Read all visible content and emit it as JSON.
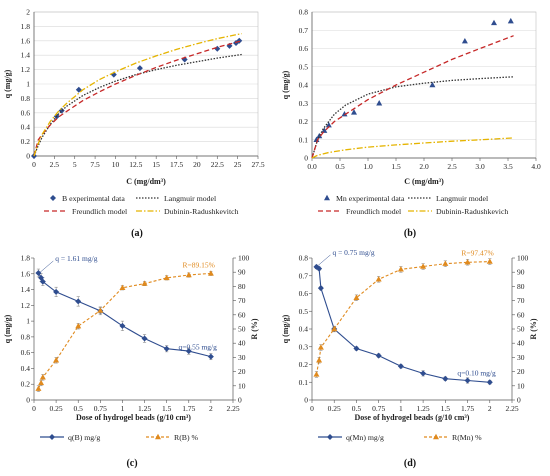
{
  "chart_data": [
    {
      "id": "a",
      "type": "scatter",
      "caption_letter": "(a)",
      "xlabel": "C (mg/dm³)",
      "ylabel": "q (mg/g)",
      "xlim": [
        0,
        27.5
      ],
      "xticks": [
        0,
        2.5,
        5,
        7.5,
        10,
        12.5,
        15,
        17.5,
        20,
        22.5,
        25,
        27.5
      ],
      "ylim": [
        0,
        2
      ],
      "yticks": [
        0,
        0.2,
        0.4,
        0.6,
        0.8,
        1,
        1.2,
        1.4,
        1.6,
        1.8,
        2
      ],
      "xtick_labels": [
        "0",
        "2.5",
        "5",
        "7.5",
        "10",
        "12.5",
        "15",
        "17.5",
        "20",
        "22.5",
        "25",
        "27.5"
      ],
      "ytick_labels": [
        "0",
        "0.2",
        "0.4",
        "0.6",
        "0.8",
        "1",
        "1.2",
        "1.4",
        "1.6",
        "1.8",
        "2"
      ],
      "grid": "horizontal",
      "legend_position": "bottom",
      "series": [
        {
          "name": "B experimental data",
          "kind": "points",
          "marker": "diamond",
          "color": "#2f4d8f",
          "x": [
            0,
            2.8,
            3.4,
            5.5,
            9.8,
            13,
            18.5,
            22.5,
            24,
            24.8,
            25.2
          ],
          "y": [
            0,
            0.55,
            0.63,
            0.92,
            1.13,
            1.22,
            1.34,
            1.49,
            1.53,
            1.57,
            1.6
          ]
        },
        {
          "name": "Langmuir model",
          "kind": "line",
          "dash": "1.5,1.5",
          "color": "#333333",
          "x": [
            0,
            0.5,
            1,
            2,
            3,
            4,
            6,
            8,
            10,
            12.5,
            15,
            17.5,
            20,
            22.5,
            25.5
          ],
          "y": [
            0,
            0.14,
            0.26,
            0.44,
            0.58,
            0.69,
            0.84,
            0.95,
            1.04,
            1.13,
            1.2,
            1.26,
            1.31,
            1.36,
            1.41
          ]
        },
        {
          "name": "Freundlich model",
          "kind": "line",
          "dash": "5,3",
          "color": "#c62828",
          "x": [
            0,
            0.5,
            1,
            2,
            3,
            4,
            6,
            8,
            10,
            12.5,
            15,
            17.5,
            20,
            22.5,
            25.5
          ],
          "y": [
            0,
            0.22,
            0.3,
            0.43,
            0.54,
            0.62,
            0.77,
            0.89,
            1.0,
            1.12,
            1.23,
            1.33,
            1.42,
            1.51,
            1.6
          ]
        },
        {
          "name": "Dubinin-Radushkevitch",
          "kind": "line",
          "dash": "6,2,1.5,2",
          "color": "#e5b400",
          "x": [
            0,
            0.5,
            1,
            2,
            3,
            4,
            6,
            8,
            10,
            12.5,
            15,
            17.5,
            20,
            22.5,
            25.5
          ],
          "y": [
            0,
            0.17,
            0.3,
            0.48,
            0.62,
            0.73,
            0.92,
            1.06,
            1.17,
            1.29,
            1.39,
            1.48,
            1.56,
            1.63,
            1.7
          ]
        }
      ]
    },
    {
      "id": "b",
      "type": "scatter",
      "caption_letter": "(b)",
      "xlabel": "C (mg/dm³)",
      "ylabel": "q (mg/g)",
      "xlim": [
        0,
        4
      ],
      "xticks": [
        0,
        0.5,
        1,
        1.5,
        2,
        2.5,
        3,
        3.5,
        4
      ],
      "ylim": [
        0,
        0.8
      ],
      "yticks": [
        0,
        0.1,
        0.2,
        0.3,
        0.4,
        0.5,
        0.6,
        0.7,
        0.8
      ],
      "xtick_labels": [
        "0.0",
        "0.5",
        "1.0",
        "1.5",
        "2.0",
        "2.5",
        "3.0",
        "3.5",
        "4.0"
      ],
      "ytick_labels": [
        "0",
        "0.1",
        "0.2",
        "0.3",
        "0.4",
        "0.5",
        "0.6",
        "0.7",
        "0.8"
      ],
      "grid": "horizontal",
      "legend_position": "bottom",
      "series": [
        {
          "name": "Mn experimental data",
          "kind": "points",
          "marker": "triangle",
          "color": "#2f4d8f",
          "x": [
            0.08,
            0.13,
            0.22,
            0.3,
            0.58,
            0.75,
            1.2,
            2.15,
            2.73,
            3.25,
            3.55
          ],
          "y": [
            0.1,
            0.12,
            0.15,
            0.18,
            0.24,
            0.25,
            0.3,
            0.4,
            0.64,
            0.74,
            0.75
          ]
        },
        {
          "name": "Langmuir model",
          "kind": "line",
          "dash": "1.5,1.5",
          "color": "#333333",
          "x": [
            0,
            0.1,
            0.2,
            0.4,
            0.6,
            0.8,
            1,
            1.5,
            2,
            2.5,
            3,
            3.6
          ],
          "y": [
            0,
            0.1,
            0.16,
            0.24,
            0.29,
            0.32,
            0.35,
            0.39,
            0.41,
            0.425,
            0.435,
            0.445
          ]
        },
        {
          "name": "Freundlich model",
          "kind": "line",
          "dash": "5,3",
          "color": "#c62828",
          "x": [
            0,
            0.1,
            0.2,
            0.4,
            0.6,
            0.8,
            1,
            1.5,
            2,
            2.5,
            3,
            3.6
          ],
          "y": [
            0,
            0.1,
            0.14,
            0.2,
            0.24,
            0.28,
            0.32,
            0.4,
            0.47,
            0.54,
            0.6,
            0.67
          ]
        },
        {
          "name": "Dubinin-Radushkevich",
          "kind": "line",
          "dash": "6,2,1.5,2",
          "color": "#e5b400",
          "x": [
            0,
            0.1,
            0.3,
            0.6,
            1,
            1.5,
            2,
            2.5,
            3,
            3.6
          ],
          "y": [
            0,
            0.015,
            0.03,
            0.045,
            0.06,
            0.072,
            0.082,
            0.092,
            0.1,
            0.11
          ]
        }
      ]
    },
    {
      "id": "c",
      "type": "line",
      "caption_letter": "(c)",
      "xlabel": "Dose of hydrogel beads (g/10 cm³)",
      "ylabel": "q (mg/g)",
      "y2label": "R (%)",
      "xlim": [
        0,
        2.25
      ],
      "xticks": [
        0,
        0.25,
        0.5,
        0.75,
        1,
        1.25,
        1.5,
        1.75,
        2,
        2.25
      ],
      "xtick_labels": [
        "0",
        "0.25",
        "0.5",
        "0.75",
        "1",
        "1.25",
        "1.5",
        "1.75",
        "2",
        "2.25"
      ],
      "ylim": [
        0,
        1.8
      ],
      "yticks": [
        0,
        0.2,
        0.4,
        0.6,
        0.8,
        1,
        1.2,
        1.4,
        1.6,
        1.8
      ],
      "ytick_labels": [
        "0",
        "0.2",
        "0.4",
        "0.6",
        "0.8",
        "1",
        "1.2",
        "1.4",
        "1.6",
        "1.8"
      ],
      "y2lim": [
        0,
        100
      ],
      "y2ticks": [
        0,
        10,
        20,
        30,
        40,
        50,
        60,
        70,
        80,
        90,
        100
      ],
      "y2tick_labels": [
        "0",
        "10",
        "20",
        "30",
        "40",
        "50",
        "60",
        "70",
        "80",
        "90",
        "100"
      ],
      "legend_position": "bottom",
      "annotations": [
        {
          "text": "q = 1.61 mg/g",
          "x": 0.06,
          "y": 1.61,
          "axis": "left",
          "color": "#2f4d8f"
        },
        {
          "text": "q=0.55 mg/g",
          "x": 2,
          "y": 0.55,
          "axis": "left",
          "color": "#2f4d8f"
        },
        {
          "text": "R=89.15%",
          "x": 2,
          "y": 89.15,
          "axis": "right",
          "color": "#e08a1e"
        }
      ],
      "series": [
        {
          "name": "q(B) mg/g",
          "axis": "left",
          "marker": "diamond",
          "dash": "",
          "color": "#2f4d8f",
          "x": [
            0.05,
            0.08,
            0.1,
            0.25,
            0.5,
            0.75,
            1,
            1.25,
            1.5,
            1.75,
            2
          ],
          "y": [
            1.61,
            1.55,
            1.5,
            1.37,
            1.25,
            1.13,
            0.94,
            0.78,
            0.65,
            0.62,
            0.55
          ],
          "err": [
            0.05,
            0.05,
            0.05,
            0.06,
            0.06,
            0.05,
            0.06,
            0.05,
            0.04,
            0.04,
            0.04
          ]
        },
        {
          "name": "R(B) %",
          "axis": "right",
          "marker": "triangle",
          "dash": "3,2",
          "color": "#e08a1e",
          "x": [
            0.05,
            0.08,
            0.1,
            0.25,
            0.5,
            0.75,
            1,
            1.25,
            1.5,
            1.75,
            2
          ],
          "y": [
            8,
            12,
            16,
            28,
            52,
            63,
            79,
            82,
            86,
            88,
            89.15
          ],
          "err": [
            2,
            2,
            2,
            2,
            2,
            2,
            1.5,
            1.5,
            1.5,
            1.5,
            1.5
          ]
        }
      ]
    },
    {
      "id": "d",
      "type": "line",
      "caption_letter": "(d)",
      "xlabel": "Dose of hydrogel beads (g/10 cm³)",
      "ylabel": "q (mg/g)",
      "y2label": "R (%)",
      "xlim": [
        0,
        2.25
      ],
      "xticks": [
        0,
        0.25,
        0.5,
        0.75,
        1,
        1.25,
        1.5,
        1.75,
        2,
        2.25
      ],
      "xtick_labels": [
        "0",
        "0.25",
        "0.5",
        "0.75",
        "1",
        "1.25",
        "1.5",
        "1.75",
        "2",
        "2.25"
      ],
      "ylim": [
        0,
        0.8
      ],
      "yticks": [
        0,
        0.1,
        0.2,
        0.3,
        0.4,
        0.5,
        0.6,
        0.7,
        0.8
      ],
      "ytick_labels": [
        "0",
        "0.1",
        "0.2",
        "0.3",
        "0.4",
        "0.5",
        "0.6",
        "0.7",
        "0.8"
      ],
      "y2lim": [
        0,
        100
      ],
      "y2ticks": [
        0,
        10,
        20,
        30,
        40,
        50,
        60,
        70,
        80,
        90,
        100
      ],
      "y2tick_labels": [
        "0",
        "10",
        "20",
        "30",
        "40",
        "50",
        "60",
        "70",
        "80",
        "90",
        "100"
      ],
      "legend_position": "bottom",
      "annotations": [
        {
          "text": "q = 0.75 mg/g",
          "x": 0.05,
          "y": 0.75,
          "axis": "left",
          "color": "#2f4d8f"
        },
        {
          "text": "q=0.10 mg/g",
          "x": 2,
          "y": 0.1,
          "axis": "left",
          "color": "#2f4d8f"
        },
        {
          "text": "R=97.47%",
          "x": 2,
          "y": 97.47,
          "axis": "right",
          "color": "#e08a1e"
        }
      ],
      "series": [
        {
          "name": "q(Mn) mg/g",
          "axis": "left",
          "marker": "diamond",
          "dash": "",
          "color": "#2f4d8f",
          "x": [
            0.05,
            0.08,
            0.1,
            0.25,
            0.5,
            0.75,
            1,
            1.25,
            1.5,
            1.75,
            2
          ],
          "y": [
            0.75,
            0.74,
            0.63,
            0.4,
            0.29,
            0.25,
            0.19,
            0.15,
            0.12,
            0.11,
            0.1
          ],
          "err": [
            0.01,
            0.01,
            0.01,
            0.01,
            0.01,
            0.01,
            0.01,
            0.015,
            0.01,
            0.015,
            0.01
          ]
        },
        {
          "name": "R(Mn) %",
          "axis": "right",
          "marker": "triangle",
          "dash": "3,2",
          "color": "#e08a1e",
          "x": [
            0.05,
            0.08,
            0.1,
            0.25,
            0.5,
            0.75,
            1,
            1.25,
            1.5,
            1.75,
            2
          ],
          "y": [
            18,
            28,
            37,
            50,
            72,
            85,
            92,
            94,
            96,
            97,
            97.47
          ],
          "err": [
            2,
            2,
            2,
            2,
            2,
            2,
            2,
            2,
            2,
            2,
            2
          ]
        }
      ]
    }
  ]
}
